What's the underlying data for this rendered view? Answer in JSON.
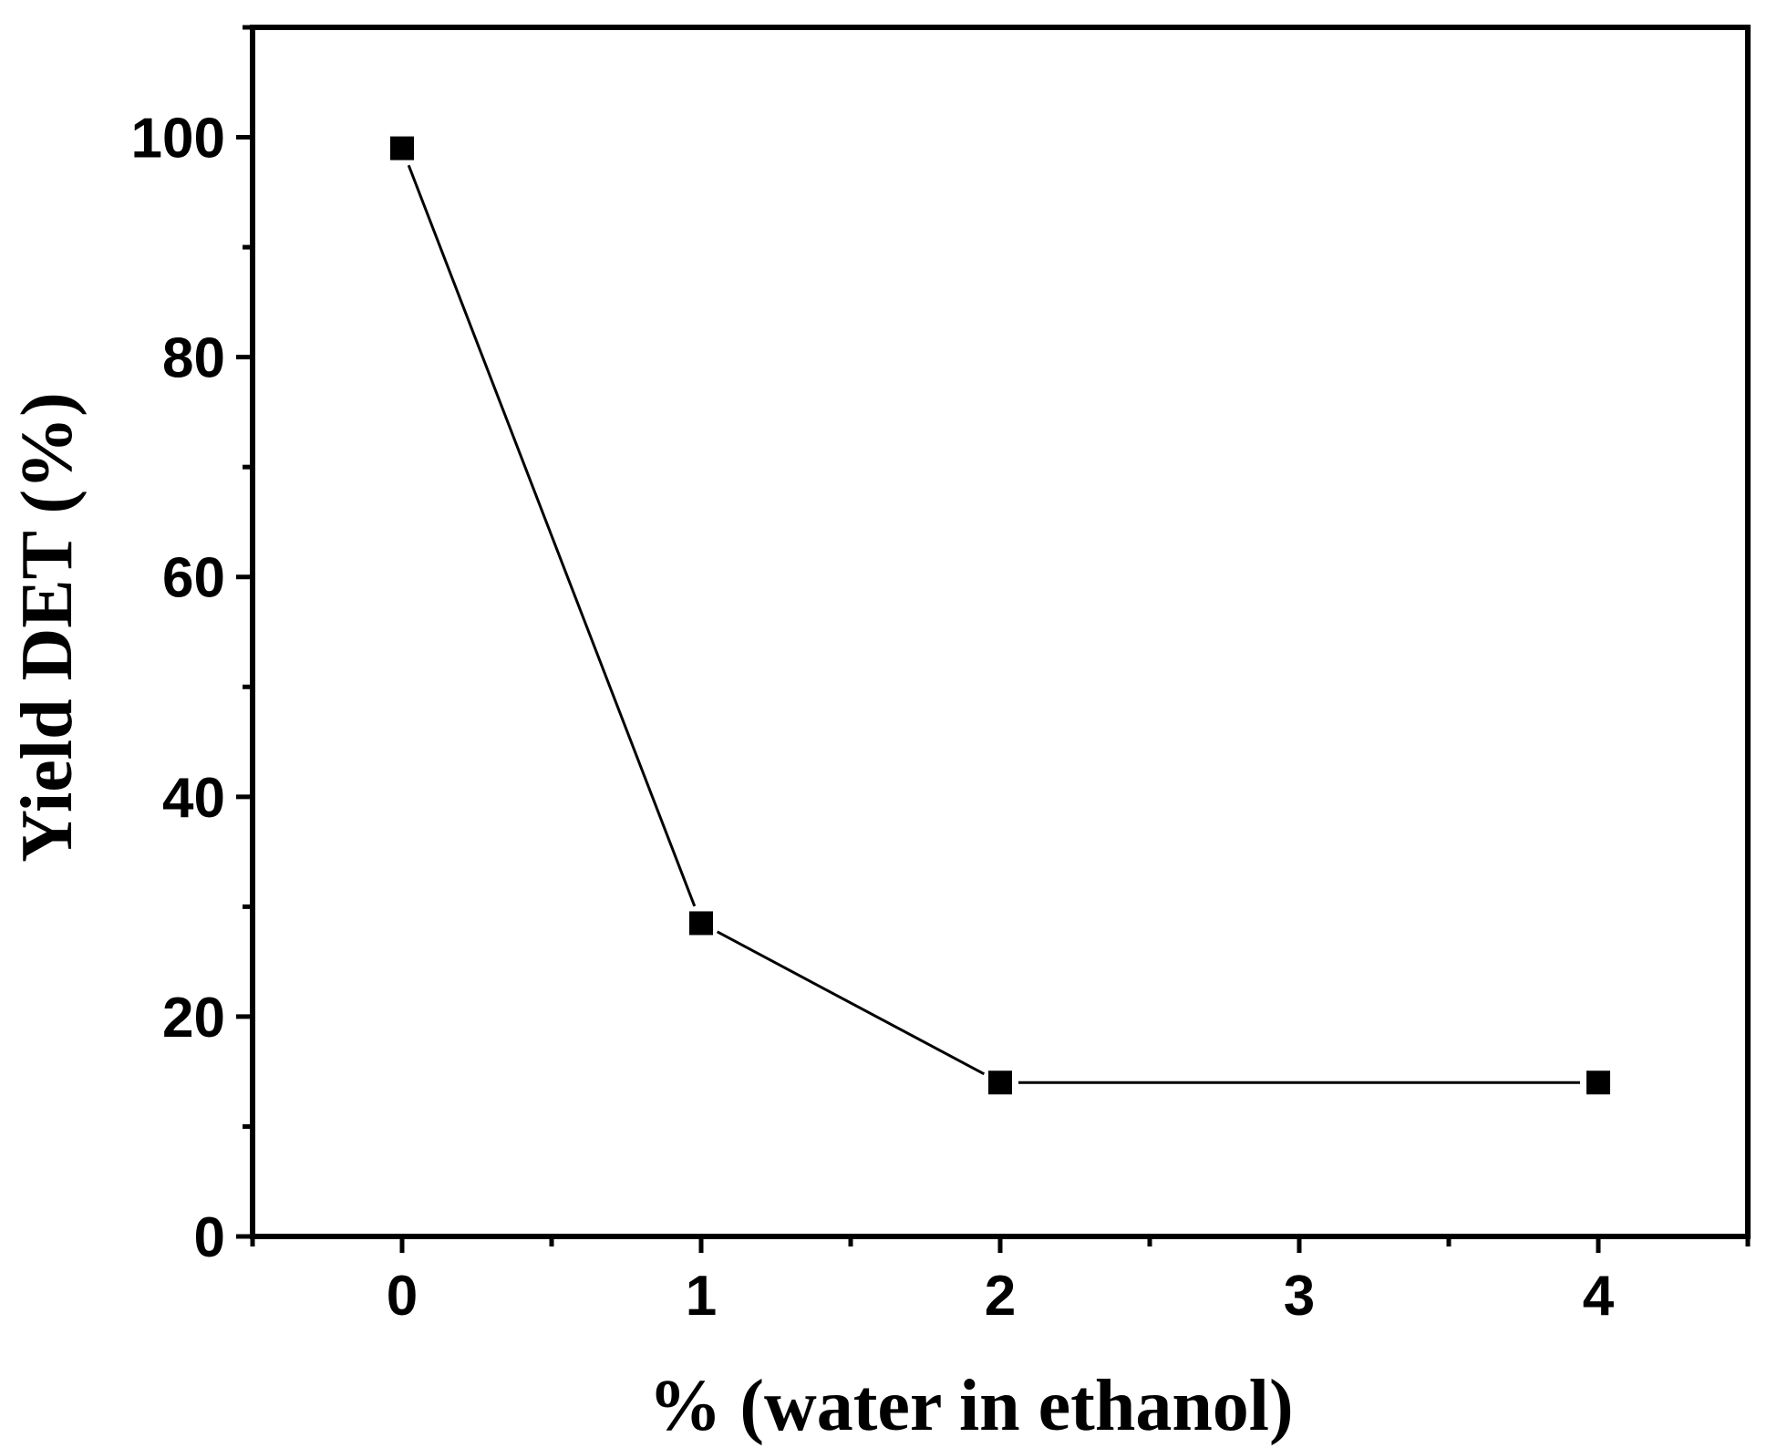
{
  "chart_data": {
    "type": "line",
    "xlabel": "% (water in ethanol)",
    "ylabel": "Yield DET (%)",
    "xlim": [
      -0.5,
      4.5
    ],
    "ylim": [
      0,
      110
    ],
    "x_ticks": [
      "0",
      "1",
      "2",
      "3",
      "4"
    ],
    "y_ticks": [
      "0",
      "20",
      "40",
      "60",
      "80",
      "100"
    ],
    "grid": false,
    "marker": "filled-square",
    "colors": {
      "line": "#000000",
      "marker": "#000000",
      "axis": "#000000"
    },
    "series": [
      {
        "x": [
          0,
          1,
          2,
          4
        ],
        "y": [
          99,
          28.5,
          14,
          14
        ]
      }
    ]
  }
}
